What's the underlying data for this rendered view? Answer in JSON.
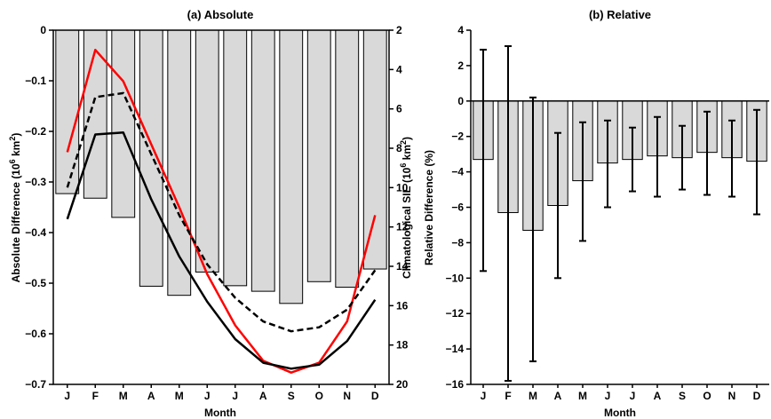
{
  "chart_data": [
    {
      "type": "bar",
      "title": "(a) Absolute",
      "xlabel": "Month",
      "ylabel": "Absolute Difference (10",
      "ylabel_sup": "6",
      "ylabel_end": " km",
      "ylabel_sup2": "2",
      "ylabel_close": ")",
      "ylabel_right": "Climatological SIE (10",
      "ylabel_right_sup": "6",
      "ylabel_right_end": " km",
      "ylabel_right_sup2": "2",
      "ylabel_right_close": ")",
      "ylim": [
        -0.7,
        0
      ],
      "yticks": [
        0,
        -0.1,
        -0.2,
        -0.3,
        -0.4,
        -0.5,
        -0.6,
        -0.7
      ],
      "ytick_labels": [
        "0",
        "−0.1",
        "−0.2",
        "−0.3",
        "−0.4",
        "−0.5",
        "−0.6",
        "−0.7"
      ],
      "ylim_right": [
        2,
        20
      ],
      "right_axis_inverted": true,
      "yticks_right": [
        2,
        4,
        6,
        8,
        10,
        12,
        14,
        16,
        18,
        20
      ],
      "categories": [
        "J",
        "F",
        "M",
        "A",
        "M",
        "J",
        "J",
        "A",
        "S",
        "O",
        "N",
        "D"
      ],
      "bar_color": "#d9d9d9",
      "values": [
        -0.323,
        -0.332,
        -0.37,
        -0.506,
        -0.524,
        -0.478,
        -0.505,
        -0.516,
        -0.54,
        -0.497,
        -0.508,
        -0.472
      ],
      "lines": [
        {
          "axis": "right",
          "style": "solid",
          "color": "#ff0000",
          "values": [
            8.2,
            3.0,
            4.6,
            7.8,
            11.0,
            14.4,
            17.0,
            18.8,
            19.4,
            18.9,
            16.8,
            11.4
          ]
        },
        {
          "axis": "right",
          "style": "dashed",
          "color": "#000000",
          "values": [
            10.0,
            5.4,
            5.2,
            8.3,
            11.4,
            13.9,
            15.6,
            16.8,
            17.3,
            17.1,
            16.2,
            14.2
          ]
        },
        {
          "axis": "right",
          "style": "solid",
          "color": "#000000",
          "values": [
            11.6,
            7.3,
            7.2,
            10.6,
            13.5,
            15.8,
            17.7,
            18.9,
            19.2,
            19.0,
            17.8,
            15.7
          ]
        }
      ]
    },
    {
      "type": "bar",
      "title": "(b) Relative",
      "xlabel": "Month",
      "ylabel": "Relative Difference (%)",
      "ylim": [
        -16,
        4
      ],
      "yticks": [
        4,
        2,
        0,
        -2,
        -4,
        -6,
        -8,
        -10,
        -12,
        -14,
        -16
      ],
      "ytick_labels": [
        "4",
        "2",
        "0",
        "−2",
        "−4",
        "−6",
        "−8",
        "−10",
        "−12",
        "−14",
        "−16"
      ],
      "categories": [
        "J",
        "F",
        "M",
        "A",
        "M",
        "J",
        "J",
        "A",
        "S",
        "O",
        "N",
        "D"
      ],
      "bar_color": "#d9d9d9",
      "values": [
        -3.3,
        -6.3,
        -7.3,
        -5.9,
        -4.5,
        -3.5,
        -3.3,
        -3.1,
        -3.2,
        -2.9,
        -3.2,
        -3.4
      ],
      "error_low": [
        -9.6,
        -15.8,
        -14.7,
        -10.0,
        -7.9,
        -6.0,
        -5.1,
        -5.4,
        -5.0,
        -5.3,
        -5.4,
        -6.4
      ],
      "error_high": [
        2.9,
        3.1,
        0.2,
        -1.8,
        -1.2,
        -1.1,
        -1.5,
        -0.9,
        -1.4,
        -0.6,
        -1.1,
        -0.5
      ]
    }
  ]
}
